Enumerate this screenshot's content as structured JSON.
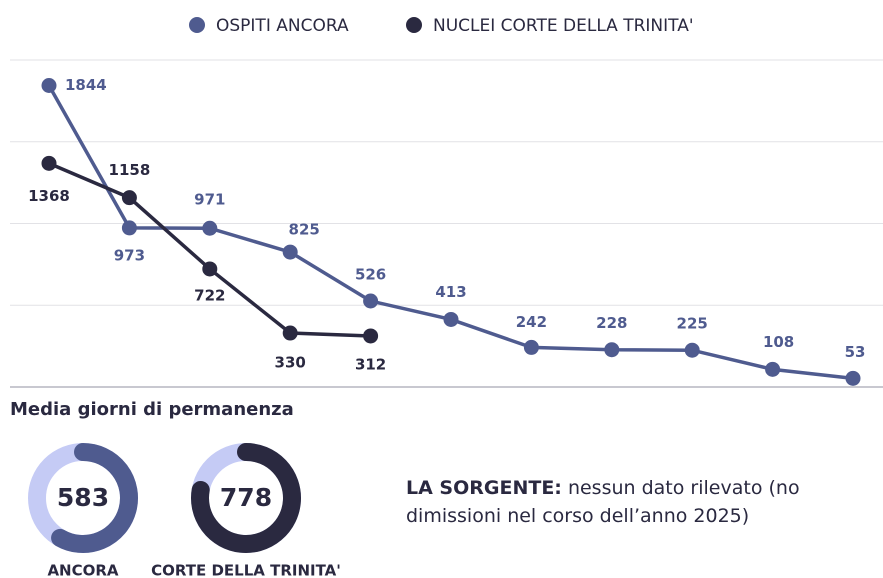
{
  "chart_data": [
    {
      "type": "line",
      "categories": [
        null,
        null,
        null,
        null,
        null,
        null,
        null,
        null,
        null,
        null,
        null
      ],
      "series": [
        {
          "name": "OSPITI ANCORA",
          "color": "#4f5b8f",
          "values": [
            1844,
            973,
            971,
            825,
            526,
            413,
            242,
            228,
            225,
            108,
            53
          ]
        },
        {
          "name": "NUCLEI CORTE DELLA TRINITA'",
          "color": "#2a2940",
          "values": [
            1368,
            1158,
            722,
            330,
            312,
            null,
            null,
            null,
            null,
            null,
            null
          ]
        }
      ],
      "ylim": [
        0,
        2000
      ],
      "yticks": [
        0,
        500,
        1000,
        1500,
        2000
      ],
      "grid": true,
      "legend": "top"
    },
    {
      "type": "donut",
      "title": "Media giorni di permanenza",
      "categories": [
        "ANCORA",
        "CORTE DELLA TRINITA'"
      ],
      "values": [
        583,
        778
      ],
      "colors": [
        "#4f5b8f",
        "#2a2940"
      ],
      "track_color": "#c5cbf5",
      "max": 1000
    }
  ],
  "note": {
    "label": "LA SORGENTE:",
    "text": "nessun dato rilevato (no dimissioni nel corso dell’anno 2025)"
  }
}
